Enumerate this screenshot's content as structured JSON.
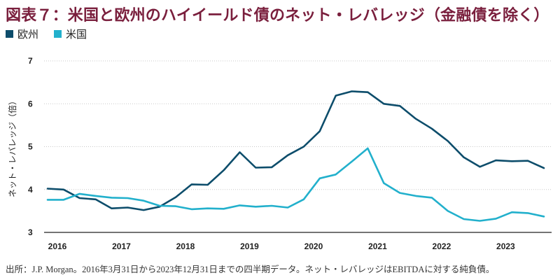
{
  "header": {
    "title": "図表７：米国と欧州のハイイールド債のネット・レバレッジ（金融債を除く）"
  },
  "footer": {
    "source": "出所：J.P. Morgan。2016年3月31日から2023年12月31日までの四半期データ。ネット・レバレッジはEBITDAに対する純負債。"
  },
  "colors": {
    "europe": "#0d4d6b",
    "us": "#22b0cc",
    "axis": "#333333",
    "title": "#7a1f3d"
  },
  "chart_data": {
    "type": "line",
    "title": "図表７：米国と欧州のハイイールド債のネット・レバレッジ（金融債を除く）",
    "xlabel": "",
    "ylabel": "ネット・レバレッジ（倍）",
    "ylim": [
      3,
      7
    ],
    "yticks": [
      "3",
      "4",
      "5",
      "6",
      "7"
    ],
    "grid": false,
    "legend": "top-left",
    "x_tick_labels": [
      "2016",
      "2017",
      "2018",
      "2019",
      "2020",
      "2021",
      "2022",
      "2023"
    ],
    "x": [
      "2016Q1",
      "2016Q2",
      "2016Q3",
      "2016Q4",
      "2017Q1",
      "2017Q2",
      "2017Q3",
      "2017Q4",
      "2018Q1",
      "2018Q2",
      "2018Q3",
      "2018Q4",
      "2019Q1",
      "2019Q2",
      "2019Q3",
      "2019Q4",
      "2020Q1",
      "2020Q2",
      "2020Q3",
      "2020Q4",
      "2021Q1",
      "2021Q2",
      "2021Q3",
      "2021Q4",
      "2022Q1",
      "2022Q2",
      "2022Q3",
      "2022Q4",
      "2023Q1",
      "2023Q2",
      "2023Q3",
      "2023Q4"
    ],
    "series": [
      {
        "name": "欧州",
        "color": "#0d4d6b",
        "values": [
          4.02,
          4.0,
          3.8,
          3.77,
          3.56,
          3.58,
          3.52,
          3.6,
          3.82,
          4.12,
          4.11,
          4.45,
          4.87,
          4.51,
          4.52,
          4.8,
          5.0,
          5.36,
          6.19,
          6.29,
          6.27,
          6.0,
          5.95,
          5.65,
          5.42,
          5.13,
          4.75,
          4.53,
          4.68,
          4.66,
          4.67,
          4.5
        ]
      },
      {
        "name": "米国",
        "color": "#22b0cc",
        "values": [
          3.76,
          3.76,
          3.9,
          3.85,
          3.81,
          3.8,
          3.74,
          3.62,
          3.61,
          3.54,
          3.56,
          3.55,
          3.63,
          3.6,
          3.62,
          3.58,
          3.77,
          4.26,
          4.35,
          4.65,
          4.96,
          4.15,
          3.92,
          3.85,
          3.81,
          3.5,
          3.31,
          3.27,
          3.32,
          3.47,
          3.45,
          3.37
        ]
      }
    ]
  }
}
